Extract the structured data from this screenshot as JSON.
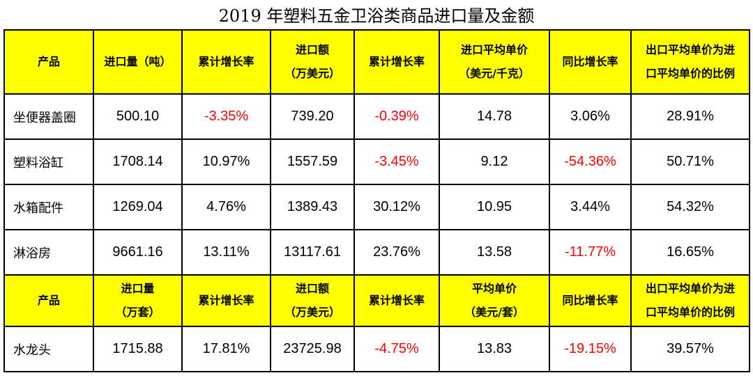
{
  "title": "2019 年塑料五金卫浴类商品进口量及金额",
  "colors": {
    "header_bg": "#ffff00",
    "negative": "#ff0000",
    "border": "#000000"
  },
  "header1": [
    [
      "产品"
    ],
    [
      "进口量（吨）"
    ],
    [
      "累计增长率"
    ],
    [
      "进口额",
      "（万美元）"
    ],
    [
      "累计增长率"
    ],
    [
      "进口平均单价",
      "（美元/千克）"
    ],
    [
      "同比增长率"
    ],
    [
      "出口平均单价为进",
      "口平均单价的比例"
    ]
  ],
  "rows1": [
    [
      "坐便器盖圈",
      "500.10",
      "-3.35%",
      "739.20",
      "-0.39%",
      "14.78",
      "3.06%",
      "28.91%"
    ],
    [
      "塑料浴缸",
      "1708.14",
      "10.97%",
      "1557.59",
      "-3.45%",
      "9.12",
      "-54.36%",
      "50.71%"
    ],
    [
      "水箱配件",
      "1269.04",
      "4.76%",
      "1389.43",
      "30.12%",
      "10.95",
      "3.44%",
      "54.32%"
    ],
    [
      "淋浴房",
      "9661.16",
      "13.11%",
      "13117.61",
      "23.76%",
      "13.58",
      "-11.77%",
      "16.65%"
    ]
  ],
  "header2": [
    [
      "产品"
    ],
    [
      "进口量",
      "（万套）"
    ],
    [
      "累计增长率"
    ],
    [
      "进口额",
      "（万美元）"
    ],
    [
      "累计增长率"
    ],
    [
      "平均单价",
      "（美元/套）"
    ],
    [
      "同比增长率"
    ],
    [
      "出口平均单价为进",
      "口平均单价的比例"
    ]
  ],
  "rows2": [
    [
      "水龙头",
      "1715.88",
      "17.81%",
      "23725.98",
      "-4.75%",
      "13.83",
      "-19.15%",
      "39.57%"
    ]
  ]
}
